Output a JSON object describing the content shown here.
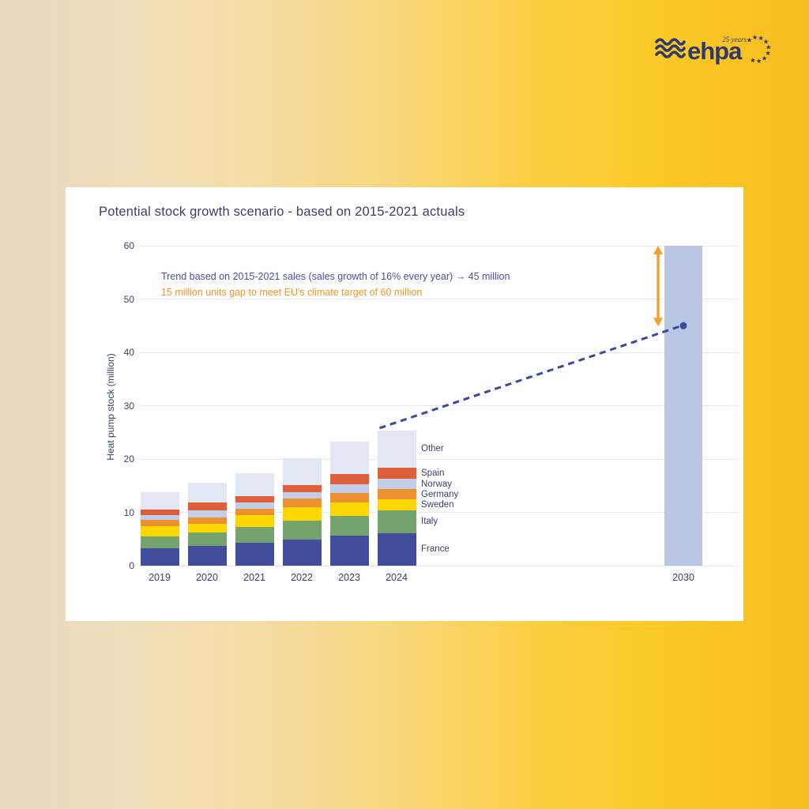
{
  "logo": {
    "name": "ehpa",
    "anniversary": "25 years",
    "color": "#2e396e"
  },
  "card": {
    "title": "Potential stock growth scenario - based on 2015-2021 actuals"
  },
  "annotations": {
    "trend": {
      "text": "Trend based on 2015-2021 sales (sales growth of 16% every year) → 45 million",
      "color": "#4152a7"
    },
    "gap": {
      "text": "15 million units gap to meet EU's climate target of 60 million",
      "color": "#f7941e"
    }
  },
  "chart_data": {
    "type": "bar",
    "stacked": true,
    "title": "Potential stock growth scenario - based on 2015-2021 actuals",
    "xlabel": "",
    "ylabel": "Heat pump stock (million)",
    "ylim": [
      0,
      60
    ],
    "yticks": [
      0,
      10,
      20,
      30,
      40,
      50,
      60
    ],
    "grid": true,
    "legend_position": "right-of-last-bar",
    "categories": [
      "2019",
      "2020",
      "2021",
      "2022",
      "2023",
      "2024"
    ],
    "series": [
      {
        "name": "France",
        "color": "#424e9b",
        "values": [
          3.2,
          3.7,
          4.3,
          4.9,
          5.7,
          6.1
        ]
      },
      {
        "name": "Italy",
        "color": "#74a36d",
        "values": [
          2.3,
          2.5,
          2.9,
          3.6,
          3.7,
          4.3
        ]
      },
      {
        "name": "Sweden",
        "color": "#fed700",
        "values": [
          1.9,
          1.6,
          2.3,
          2.5,
          2.5,
          2.1
        ]
      },
      {
        "name": "Germany",
        "color": "#ec9130",
        "values": [
          1.2,
          1.3,
          1.1,
          1.6,
          1.7,
          1.8
        ]
      },
      {
        "name": "Norway",
        "color": "#c2cde8",
        "values": [
          0.9,
          1.2,
          1.2,
          1.2,
          1.7,
          2.0
        ]
      },
      {
        "name": "Spain",
        "color": "#df5f3b",
        "values": [
          1.0,
          1.5,
          1.3,
          1.3,
          1.9,
          2.1
        ]
      },
      {
        "name": "Other",
        "color": "#e2e7f4",
        "values": [
          3.3,
          3.7,
          4.3,
          5.1,
          6.0,
          7.0
        ]
      }
    ],
    "totals": [
      13.8,
      15.5,
      17.4,
      20.2,
      23.2,
      25.4
    ],
    "target_bar": {
      "category": "2030",
      "value": 60,
      "color": "#bac6e3"
    },
    "trend_point": {
      "category": "2030",
      "value": 45,
      "color": "#3a4a9e"
    },
    "trend_line": {
      "from_category": "2024",
      "from_value": 25.8,
      "to_category": "2030",
      "to_value": 45,
      "style": "dashed",
      "color": "#3a4a9e"
    },
    "gap_arrow": {
      "from_value": 60,
      "to_value": 45,
      "color": "#f59e31"
    }
  }
}
